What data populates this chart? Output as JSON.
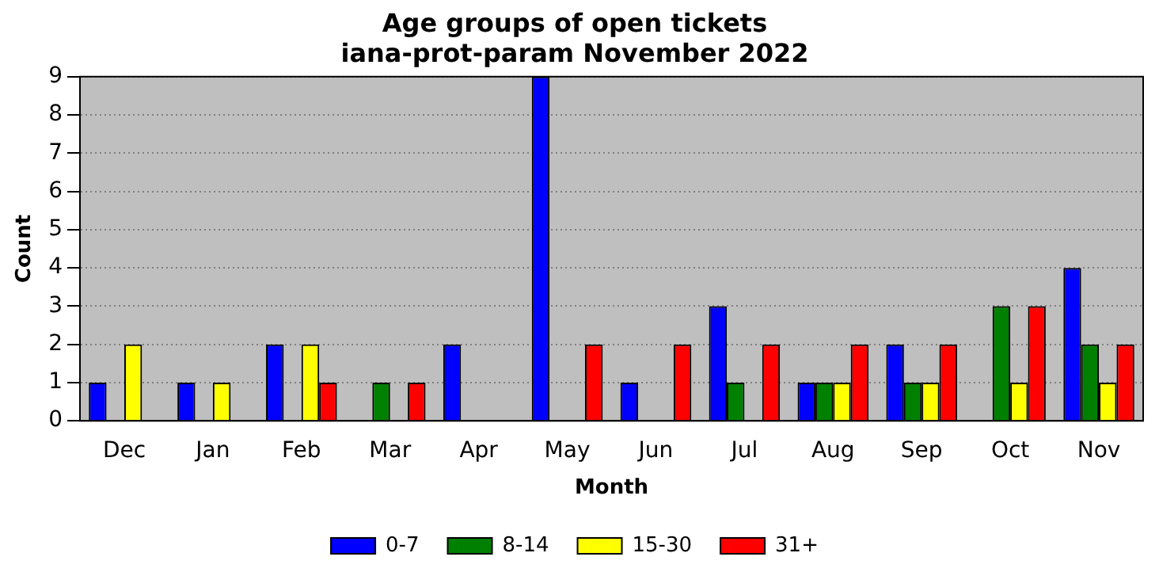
{
  "chart_data": {
    "type": "bar",
    "title": "Age groups of open tickets",
    "subtitle": "iana-prot-param November 2022",
    "xlabel": "Month",
    "ylabel": "Count",
    "categories": [
      "Dec",
      "Jan",
      "Feb",
      "Mar",
      "Apr",
      "May",
      "Jun",
      "Jul",
      "Aug",
      "Sep",
      "Oct",
      "Nov"
    ],
    "series": [
      {
        "name": "0-7",
        "color": "#0000ff",
        "values": [
          1,
          1,
          2,
          0,
          2,
          9,
          1,
          3,
          1,
          2,
          0,
          4
        ]
      },
      {
        "name": "8-14",
        "color": "#008000",
        "values": [
          0,
          0,
          0,
          1,
          0,
          0,
          0,
          1,
          1,
          1,
          3,
          2
        ]
      },
      {
        "name": "15-30",
        "color": "#ffff00",
        "values": [
          2,
          1,
          2,
          0,
          0,
          0,
          0,
          0,
          1,
          1,
          1,
          1
        ]
      },
      {
        "name": "31+",
        "color": "#ff0000",
        "values": [
          0,
          0,
          1,
          1,
          0,
          2,
          2,
          2,
          2,
          2,
          3,
          2
        ]
      }
    ],
    "ylim": [
      0,
      9
    ],
    "yticks": [
      0,
      1,
      2,
      3,
      4,
      5,
      6,
      7,
      8,
      9
    ],
    "grid": "y",
    "legend": "bottom"
  }
}
